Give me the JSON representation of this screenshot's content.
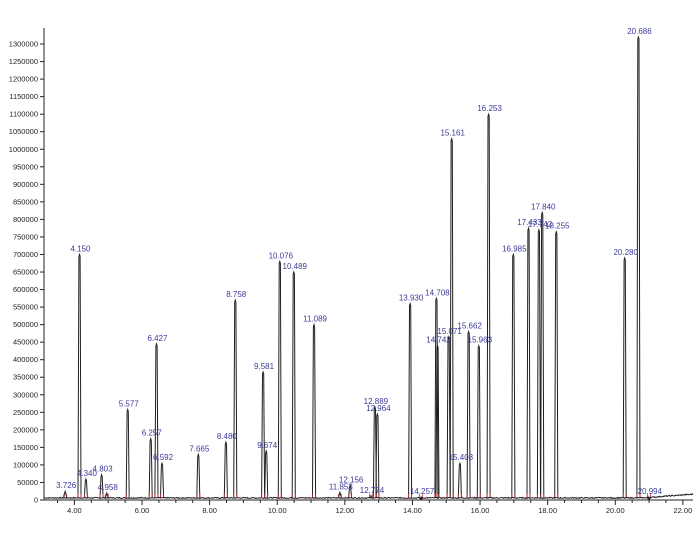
{
  "chart_data": {
    "type": "line",
    "title": "",
    "xlabel": "",
    "ylabel": "",
    "xlim": [
      3.1,
      22.3
    ],
    "ylim": [
      0,
      1340000
    ],
    "x_ticks": [
      4.0,
      6.0,
      8.0,
      10.0,
      12.0,
      14.0,
      16.0,
      18.0,
      20.0,
      22.0
    ],
    "x_tick_labels": [
      "4.00",
      "6.00",
      "8.00",
      "10.00",
      "12.00",
      "14.00",
      "16.00",
      "18.00",
      "20.00",
      "22.00"
    ],
    "y_ticks": [
      0,
      50000,
      100000,
      150000,
      200000,
      250000,
      300000,
      350000,
      400000,
      450000,
      500000,
      550000,
      600000,
      650000,
      700000,
      750000,
      800000,
      850000,
      900000,
      950000,
      1000000,
      1050000,
      1100000,
      1150000,
      1200000,
      1250000,
      1300000
    ],
    "y_tick_labels": [
      "0",
      "50000",
      "100000",
      "150000",
      "200000",
      "250000",
      "300000",
      "350000",
      "400000",
      "450000",
      "500000",
      "550000",
      "600000",
      "650000",
      "700000",
      "750000",
      "800000",
      "850000",
      "900000",
      "950000",
      "1000000",
      "1050000",
      "1100000",
      "1150000",
      "1200000",
      "1250000",
      "1300000"
    ],
    "grid": false,
    "colors": {
      "trace": "#1f1f1f",
      "label": "#3a3a9a",
      "integration_mark": "#cc3333",
      "axis": "#222222"
    },
    "peaks": [
      {
        "label": "3.726",
        "rt": 3.726,
        "height": 25000
      },
      {
        "label": "4.150",
        "rt": 4.15,
        "height": 700000
      },
      {
        "label": "4.340",
        "rt": 4.34,
        "height": 60000
      },
      {
        "label": "4.803",
        "rt": 4.803,
        "height": 72000
      },
      {
        "label": "4.958",
        "rt": 4.958,
        "height": 20000
      },
      {
        "label": "5.577",
        "rt": 5.577,
        "height": 258000
      },
      {
        "label": "6.257",
        "rt": 6.257,
        "height": 175000
      },
      {
        "label": "6.427",
        "rt": 6.427,
        "height": 445000
      },
      {
        "label": "6.592",
        "rt": 6.592,
        "height": 105000
      },
      {
        "label": "7.665",
        "rt": 7.665,
        "height": 130000
      },
      {
        "label": "8.480",
        "rt": 8.48,
        "height": 165000
      },
      {
        "label": "8.758",
        "rt": 8.758,
        "height": 570000
      },
      {
        "label": "9.581",
        "rt": 9.581,
        "height": 365000
      },
      {
        "label": "9.674",
        "rt": 9.674,
        "height": 140000
      },
      {
        "label": "10.076",
        "rt": 10.076,
        "height": 680000
      },
      {
        "label": "10.489",
        "rt": 10.489,
        "height": 650000
      },
      {
        "label": "11.089",
        "rt": 11.089,
        "height": 500000
      },
      {
        "label": "11.853",
        "rt": 11.853,
        "height": 22000
      },
      {
        "label": "12.156",
        "rt": 12.156,
        "height": 42000
      },
      {
        "label": "12.774",
        "rt": 12.774,
        "height": 12000
      },
      {
        "label": "12.889",
        "rt": 12.889,
        "height": 265000
      },
      {
        "label": "12.964",
        "rt": 12.964,
        "height": 245000
      },
      {
        "label": "13.930",
        "rt": 13.93,
        "height": 560000
      },
      {
        "label": "14.257",
        "rt": 14.257,
        "height": 8000
      },
      {
        "label": "14.708",
        "rt": 14.708,
        "height": 575000
      },
      {
        "label": "14.742",
        "rt": 14.742,
        "height": 440000
      },
      {
        "label": "15.071",
        "rt": 15.071,
        "height": 465000
      },
      {
        "label": "15.161",
        "rt": 15.161,
        "height": 1030000
      },
      {
        "label": "15.403",
        "rt": 15.403,
        "height": 105000
      },
      {
        "label": "15.662",
        "rt": 15.662,
        "height": 480000
      },
      {
        "label": "15.963",
        "rt": 15.963,
        "height": 440000
      },
      {
        "label": "16.253",
        "rt": 16.253,
        "height": 1100000
      },
      {
        "label": "16.985",
        "rt": 16.985,
        "height": 700000
      },
      {
        "label": "17.433",
        "rt": 17.433,
        "height": 775000
      },
      {
        "label": "17.742",
        "rt": 17.742,
        "height": 770000
      },
      {
        "label": "17.840",
        "rt": 17.84,
        "height": 820000
      },
      {
        "label": "18.255",
        "rt": 18.255,
        "height": 765000
      },
      {
        "label": "20.280",
        "rt": 20.28,
        "height": 690000
      },
      {
        "label": "20.686",
        "rt": 20.686,
        "height": 1320000
      },
      {
        "label": "20.994",
        "rt": 20.994,
        "height": 8000
      }
    ]
  }
}
